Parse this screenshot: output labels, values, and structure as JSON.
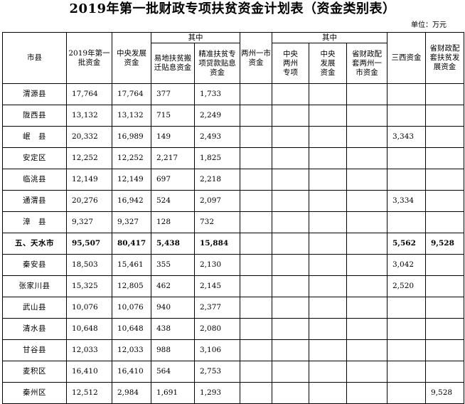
{
  "title": "2019年第一批财政专项扶贫资金计划表（资金类别表）",
  "unit": "单位：万元",
  "headers": {
    "county": "市县",
    "total": "2019年第一批资金",
    "central_dev": "中央发展资金",
    "group1_label": "其中",
    "relocation": "易地扶贫搬迁贴息资金",
    "precision_loan": "精准扶贫专项贷款贴息资金",
    "two_state_one_city": "两州一市资金",
    "group2_label": "其中",
    "central_two_state": "中央两州专项",
    "central_dev2": "中央发展资金",
    "provincial_match_two_state": "省财政配套两州一市资金",
    "sanxi": "三西资金",
    "provincial_match_dev": "省财政配套扶贫发展资金"
  },
  "rows": [
    {
      "name": "渭源县",
      "total": "17,764",
      "central": "17,764",
      "relocation": "377",
      "loan": "1,733",
      "lz": "",
      "c2": "",
      "cd": "",
      "pm": "",
      "sanxi": "",
      "pd": "",
      "bold": false
    },
    {
      "name": "陇西县",
      "total": "13,132",
      "central": "13,132",
      "relocation": "715",
      "loan": "2,249",
      "lz": "",
      "c2": "",
      "cd": "",
      "pm": "",
      "sanxi": "",
      "pd": "",
      "bold": false
    },
    {
      "name": "岷　县",
      "total": "20,332",
      "central": "16,989",
      "relocation": "149",
      "loan": "2,493",
      "lz": "",
      "c2": "",
      "cd": "",
      "pm": "",
      "sanxi": "3,343",
      "pd": "",
      "bold": false
    },
    {
      "name": "安定区",
      "total": "12,252",
      "central": "12,252",
      "relocation": "2,217",
      "loan": "1,825",
      "lz": "",
      "c2": "",
      "cd": "",
      "pm": "",
      "sanxi": "",
      "pd": "",
      "bold": false
    },
    {
      "name": "临洮县",
      "total": "12,149",
      "central": "12,149",
      "relocation": "697",
      "loan": "2,218",
      "lz": "",
      "c2": "",
      "cd": "",
      "pm": "",
      "sanxi": "",
      "pd": "",
      "bold": false
    },
    {
      "name": "通渭县",
      "total": "20,276",
      "central": "16,942",
      "relocation": "524",
      "loan": "2,097",
      "lz": "",
      "c2": "",
      "cd": "",
      "pm": "",
      "sanxi": "3,334",
      "pd": "",
      "bold": false
    },
    {
      "name": "漳　县",
      "total": "9,327",
      "central": "9,327",
      "relocation": "128",
      "loan": "732",
      "lz": "",
      "c2": "",
      "cd": "",
      "pm": "",
      "sanxi": "",
      "pd": "",
      "bold": false
    },
    {
      "name": "五、天水市",
      "total": "95,507",
      "central": "80,417",
      "relocation": "5,438",
      "loan": "15,884",
      "lz": "",
      "c2": "",
      "cd": "",
      "pm": "",
      "sanxi": "5,562",
      "pd": "9,528",
      "bold": true
    },
    {
      "name": "秦安县",
      "total": "18,503",
      "central": "15,461",
      "relocation": "355",
      "loan": "2,130",
      "lz": "",
      "c2": "",
      "cd": "",
      "pm": "",
      "sanxi": "3,042",
      "pd": "",
      "bold": false
    },
    {
      "name": "张家川县",
      "total": "15,325",
      "central": "12,805",
      "relocation": "462",
      "loan": "2,145",
      "lz": "",
      "c2": "",
      "cd": "",
      "pm": "",
      "sanxi": "2,520",
      "pd": "",
      "bold": false
    },
    {
      "name": "武山县",
      "total": "10,076",
      "central": "10,076",
      "relocation": "940",
      "loan": "2,377",
      "lz": "",
      "c2": "",
      "cd": "",
      "pm": "",
      "sanxi": "",
      "pd": "",
      "bold": false
    },
    {
      "name": "清水县",
      "total": "10,648",
      "central": "10,648",
      "relocation": "438",
      "loan": "2,080",
      "lz": "",
      "c2": "",
      "cd": "",
      "pm": "",
      "sanxi": "",
      "pd": "",
      "bold": false
    },
    {
      "name": "甘谷县",
      "total": "12,033",
      "central": "12,033",
      "relocation": "988",
      "loan": "3,106",
      "lz": "",
      "c2": "",
      "cd": "",
      "pm": "",
      "sanxi": "",
      "pd": "",
      "bold": false
    },
    {
      "name": "麦积区",
      "total": "16,410",
      "central": "16,410",
      "relocation": "564",
      "loan": "2,753",
      "lz": "",
      "c2": "",
      "cd": "",
      "pm": "",
      "sanxi": "",
      "pd": "",
      "bold": false
    },
    {
      "name": "秦州区",
      "total": "12,512",
      "central": "2,984",
      "relocation": "1,691",
      "loan": "1,293",
      "lz": "",
      "c2": "",
      "cd": "",
      "pm": "",
      "sanxi": "",
      "pd": "9,528",
      "bold": false
    }
  ]
}
